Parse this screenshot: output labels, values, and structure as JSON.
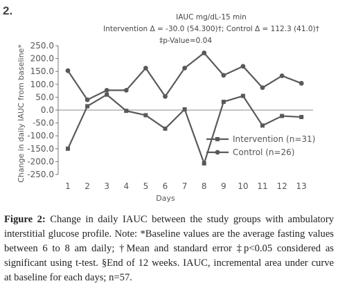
{
  "panel_label": "2.",
  "chart_data": {
    "type": "line",
    "annotations": [
      "IAUC mg/dL-15 min",
      "Intervention Δ = -30.0 (54.300)†; Control Δ = 112.3 (41.0)†",
      "‡p-Value=0.04"
    ],
    "xlabel": "Days",
    "ylabel": "Change in daily IAUC from baseline*",
    "x": [
      1,
      2,
      3,
      4,
      5,
      6,
      7,
      8,
      9,
      10,
      11,
      12,
      13
    ],
    "xticks": [
      "1",
      "2",
      "3",
      "4",
      "5",
      "6",
      "7",
      "8",
      "9",
      "10",
      "11",
      "12",
      "13"
    ],
    "yticks": [
      "250.0",
      "200.0",
      "150.0",
      "100.0",
      "50.0",
      "0.0",
      "-50.0",
      "-100.0",
      "-150.0",
      "-200.0",
      "-250.0"
    ],
    "ylim": [
      -250,
      250
    ],
    "zero_line": true,
    "grid": false,
    "legend_position": "right",
    "series": [
      {
        "name": "Intervention (n=31)",
        "marker": "square",
        "color": "#595959",
        "values": [
          -150,
          15,
          60,
          -3,
          -20,
          -72,
          3,
          -207,
          32,
          55,
          -60,
          -23,
          -27
        ]
      },
      {
        "name": "Control (n=26)",
        "marker": "circle",
        "color": "#595959",
        "values": [
          153,
          40,
          77,
          77,
          163,
          53,
          163,
          222,
          135,
          170,
          87,
          133,
          104
        ]
      }
    ]
  },
  "caption": {
    "label": "Figure 2:",
    "text": "Change in daily IAUC between the study groups with ambulatory interstitial glucose profile. Note: *Baseline values are the average fasting values between 6 to 8 am daily; †Mean and standard error ‡p<0.05 considered as significant using t-test. §End of 12 weeks. IAUC, incremental area under curve at baseline for each days; n=57."
  }
}
